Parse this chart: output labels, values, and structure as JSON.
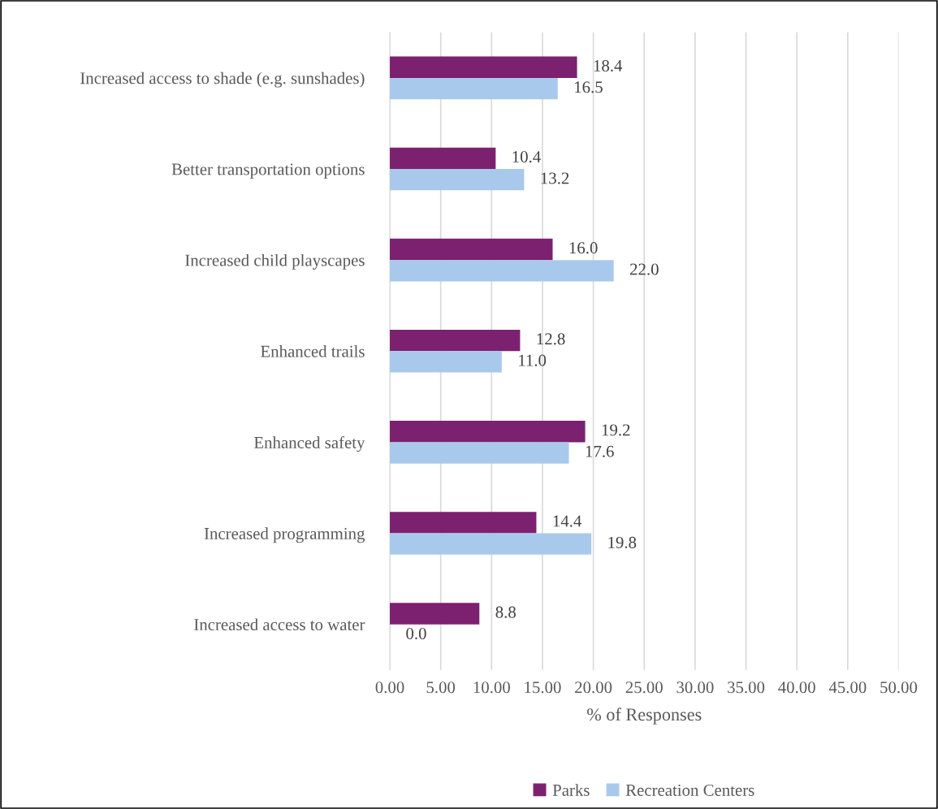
{
  "chart_data": {
    "type": "bar",
    "orientation": "horizontal",
    "xlabel": "% of Responses",
    "categories": [
      "Increased access to shade (e.g. sunshades)",
      "Better transportation options",
      "Increased child playscapes",
      "Enhanced trails",
      "Enhanced safety",
      "Increased programming",
      "Increased access to water"
    ],
    "series": [
      {
        "name": "Parks",
        "color": "#7b2170",
        "values": [
          18.4,
          10.4,
          16.0,
          12.8,
          19.2,
          14.4,
          8.8
        ],
        "value_labels": [
          "18.4",
          "10.4",
          "16.0",
          "12.8",
          "19.2",
          "14.4",
          "8.8"
        ]
      },
      {
        "name": "Recreation Centers",
        "color": "#a9c9ec",
        "values": [
          16.5,
          13.2,
          22.0,
          11.0,
          17.6,
          19.8,
          0.0
        ],
        "value_labels": [
          "16.5",
          "13.2",
          "22.0",
          "11.0",
          "17.6",
          "19.8",
          "0.0"
        ]
      }
    ],
    "xlim": [
      0,
      50
    ],
    "xticks": [
      {
        "value": 0,
        "label": "0.00"
      },
      {
        "value": 5,
        "label": "5.00"
      },
      {
        "value": 10,
        "label": "10.00"
      },
      {
        "value": 15,
        "label": "15.00"
      },
      {
        "value": 20,
        "label": "20.00"
      },
      {
        "value": 25,
        "label": "25.00"
      },
      {
        "value": 30,
        "label": "30.00"
      },
      {
        "value": 35,
        "label": "35.00"
      },
      {
        "value": 40,
        "label": "40.00"
      },
      {
        "value": 45,
        "label": "45.00"
      },
      {
        "value": 50,
        "label": "50.00"
      }
    ],
    "grid": "x",
    "legend": "bottom"
  }
}
